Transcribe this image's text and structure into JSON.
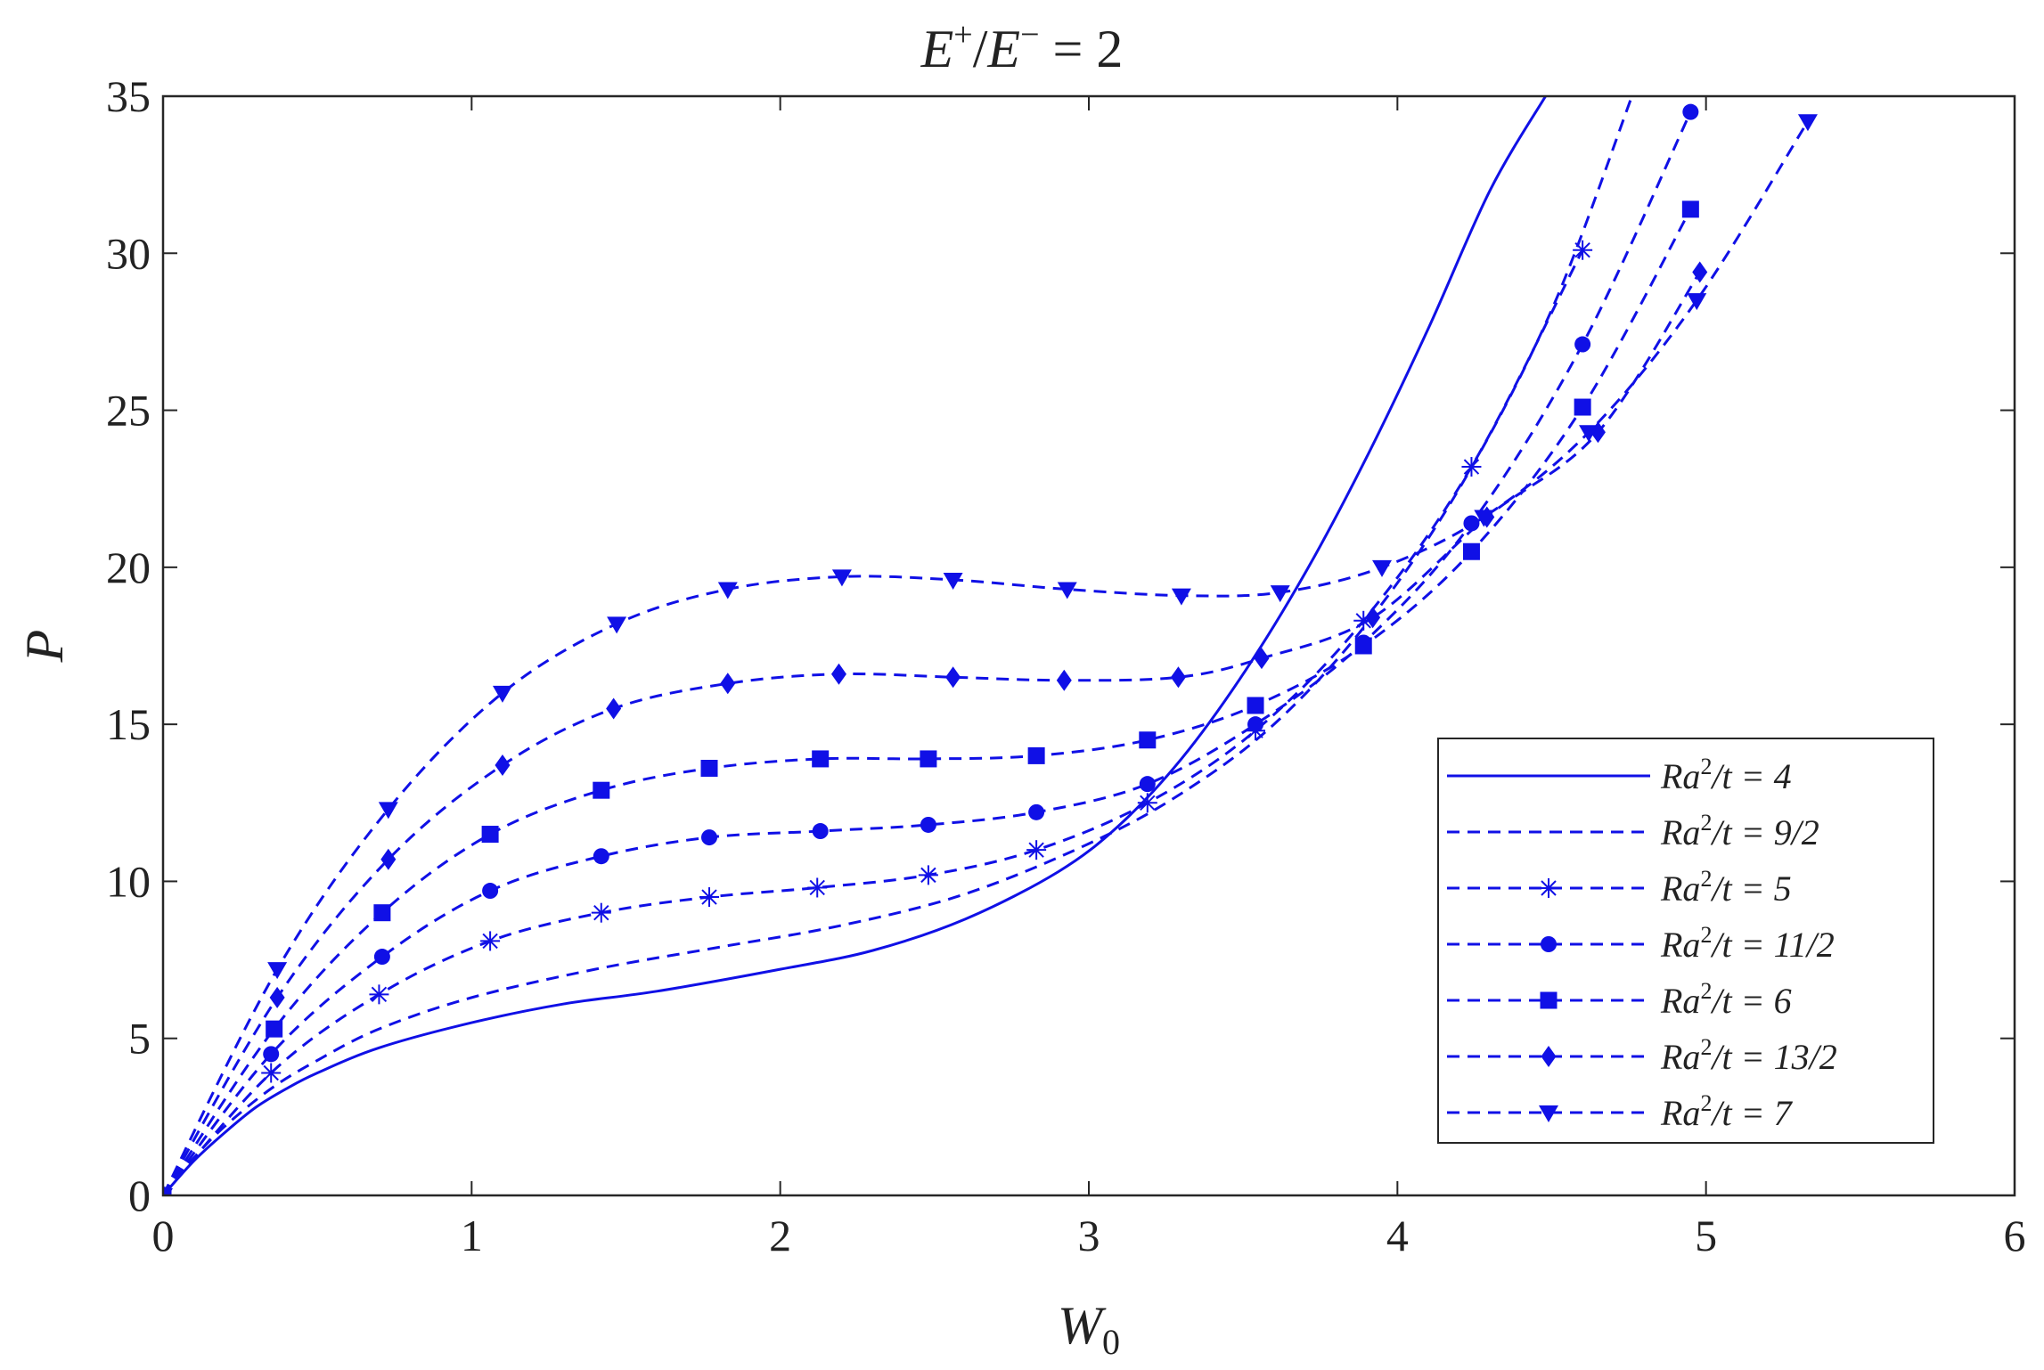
{
  "chart_data": {
    "type": "line",
    "title_parts": {
      "e": "E",
      "plus": "+",
      "slash": "/",
      "e2": "E",
      "minus": "−",
      "eq": " = 2"
    },
    "xlabel": {
      "main": "W",
      "sub": "0"
    },
    "ylabel": "P",
    "xlim": [
      0,
      6
    ],
    "ylim": [
      0,
      35
    ],
    "xticks": [
      "0",
      "1",
      "2",
      "3",
      "4",
      "5",
      "6"
    ],
    "yticks": [
      "0",
      "5",
      "10",
      "15",
      "20",
      "25",
      "30",
      "35"
    ],
    "grid": false,
    "legend_position": "lower-right",
    "color": "#1010e6",
    "series": [
      {
        "name": "Ra²/t = 4",
        "label_parts": {
          "base": "Ra",
          "sup": "2",
          "rest": "/t = 4"
        },
        "line": "solid",
        "marker": "none",
        "x": [
          0,
          0.1,
          0.2,
          0.3,
          0.4,
          0.5,
          0.7,
          1.0,
          1.3,
          1.6,
          2.0,
          2.3,
          2.6,
          2.9,
          3.1,
          3.3,
          3.5,
          3.7,
          3.9,
          4.1,
          4.3,
          4.48
        ],
        "y": [
          0,
          1.1,
          2.0,
          2.8,
          3.4,
          3.9,
          4.7,
          5.5,
          6.1,
          6.5,
          7.2,
          7.8,
          8.8,
          10.3,
          11.8,
          13.9,
          16.6,
          19.8,
          23.5,
          27.6,
          32.0,
          35.0
        ]
      },
      {
        "name": "Ra²/t = 9/2",
        "label_parts": {
          "base": "Ra",
          "sup": "2",
          "rest": "/t = 9/2"
        },
        "line": "dashed",
        "marker": "none",
        "x": [
          0,
          0.1,
          0.2,
          0.35,
          0.5,
          0.7,
          1.0,
          1.4,
          1.8,
          2.2,
          2.6,
          3.0,
          3.3,
          3.6,
          3.9,
          4.2,
          4.5,
          4.76
        ],
        "y": [
          0,
          1.2,
          2.2,
          3.4,
          4.3,
          5.3,
          6.3,
          7.2,
          7.9,
          8.6,
          9.6,
          11.2,
          12.8,
          15.0,
          18.2,
          22.5,
          28.2,
          35.0
        ]
      },
      {
        "name": "Ra²/t = 5",
        "label_parts": {
          "base": "Ra",
          "sup": "2",
          "rest": "/t = 5"
        },
        "line": "dashed",
        "marker": "asterisk",
        "x": [
          0,
          0.35,
          0.7,
          1.06,
          1.42,
          1.77,
          2.12,
          2.48,
          2.83,
          3.19,
          3.54,
          3.89,
          4.24,
          4.6
        ],
        "y": [
          0,
          3.9,
          6.4,
          8.1,
          9.0,
          9.5,
          9.8,
          10.2,
          11.0,
          12.5,
          14.8,
          18.3,
          23.2,
          30.1
        ]
      },
      {
        "name": "Ra²/t = 11/2",
        "label_parts": {
          "base": "Ra",
          "sup": "2",
          "rest": "/t = 11/2"
        },
        "line": "dashed",
        "marker": "circle",
        "x": [
          0,
          0.35,
          0.71,
          1.06,
          1.42,
          1.77,
          2.13,
          2.48,
          2.83,
          3.19,
          3.54,
          3.89,
          4.24,
          4.6,
          4.95
        ],
        "y": [
          0,
          4.5,
          7.6,
          9.7,
          10.8,
          11.4,
          11.6,
          11.8,
          12.2,
          13.1,
          15.0,
          17.6,
          21.4,
          27.1,
          34.5
        ]
      },
      {
        "name": "Ra²/t = 6",
        "label_parts": {
          "base": "Ra",
          "sup": "2",
          "rest": "/t = 6"
        },
        "line": "dashed",
        "marker": "square",
        "x": [
          0,
          0.36,
          0.71,
          1.06,
          1.42,
          1.77,
          2.13,
          2.48,
          2.83,
          3.19,
          3.54,
          3.89,
          4.24,
          4.6,
          4.95
        ],
        "y": [
          0,
          5.3,
          9.0,
          11.5,
          12.9,
          13.6,
          13.9,
          13.9,
          14.0,
          14.5,
          15.6,
          17.5,
          20.5,
          25.1,
          31.4
        ]
      },
      {
        "name": "Ra²/t = 13/2",
        "label_parts": {
          "base": "Ra",
          "sup": "2",
          "rest": "/t = 13/2"
        },
        "line": "dashed",
        "marker": "diamond",
        "x": [
          0,
          0.37,
          0.73,
          1.1,
          1.46,
          1.83,
          2.19,
          2.56,
          2.92,
          3.29,
          3.56,
          3.92,
          4.29,
          4.65,
          4.98
        ],
        "y": [
          0,
          6.3,
          10.7,
          13.7,
          15.5,
          16.3,
          16.6,
          16.5,
          16.4,
          16.5,
          17.1,
          18.4,
          21.6,
          24.3,
          29.4
        ]
      },
      {
        "name": "Ra²/t = 7",
        "label_parts": {
          "base": "Ra",
          "sup": "2",
          "rest": "/t = 7"
        },
        "line": "dashed",
        "marker": "triangle-down",
        "x": [
          0,
          0.37,
          0.73,
          1.1,
          1.47,
          1.83,
          2.2,
          2.56,
          2.93,
          3.3,
          3.62,
          3.95,
          4.28,
          4.62,
          4.97,
          5.33
        ],
        "y": [
          0,
          7.2,
          12.3,
          16.0,
          18.2,
          19.3,
          19.7,
          19.6,
          19.3,
          19.1,
          19.2,
          20.0,
          21.6,
          24.3,
          28.5,
          34.2
        ]
      }
    ]
  }
}
